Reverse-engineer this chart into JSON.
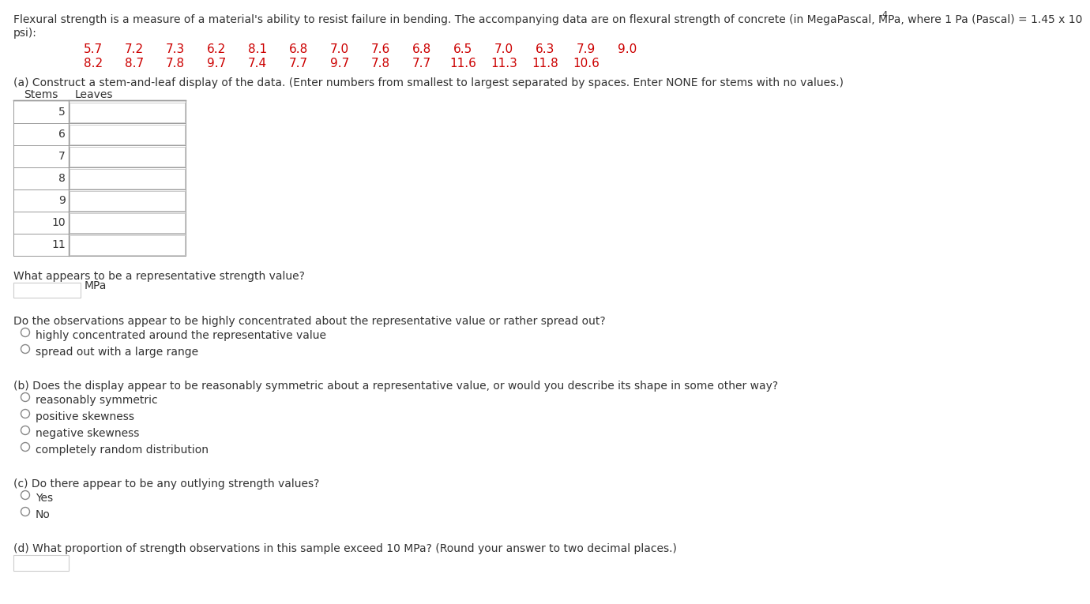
{
  "title_line1": "Flexural strength is a measure of a material's ability to resist failure in bending. The accompanying data are on flexural strength of concrete (in MegaPascal, MPa, where 1 Pa (Pascal) = 1.45 x 10⁻⁴",
  "title_line1_base": "Flexural strength is a measure of a material's ability to resist failure in bending. The accompanying data are on flexural strength of concrete (in MegaPascal, MPa, where 1 Pa (Pascal) = 1.45 x 10",
  "title_superscript": "-4",
  "title_line2": "psi):",
  "data_row1": [
    "5.7",
    "7.2",
    "7.3",
    "6.2",
    "8.1",
    "6.8",
    "7.0",
    "7.6",
    "6.8",
    "6.5",
    "7.0",
    "6.3",
    "7.9",
    "9.0"
  ],
  "data_row2": [
    "8.2",
    "8.7",
    "7.8",
    "9.7",
    "7.4",
    "7.7",
    "9.7",
    "7.8",
    "7.7",
    "11.6",
    "11.3",
    "11.8",
    "10.6"
  ],
  "data_color": "#cc0000",
  "text_color": "#333333",
  "bg_color": "#ffffff",
  "part_a_label": "(a) Construct a stem-and-leaf display of the data. (Enter numbers from smallest to largest separated by spaces. Enter NONE for stems with no values.)",
  "stems_label": "Stems",
  "leaves_label": "Leaves",
  "stems": [
    "5",
    "6",
    "7",
    "8",
    "9",
    "10",
    "11"
  ],
  "rep_value_q": "What appears to be a representative strength value?",
  "mpa_label": "MPa",
  "conc_q": "Do the observations appear to be highly concentrated about the representative value or rather spread out?",
  "conc_opt1": "highly concentrated around the representative value",
  "conc_opt2": "spread out with a large range",
  "part_b_label": "(b) Does the display appear to be reasonably symmetric about a representative value, or would you describe its shape in some other way?",
  "b_opt1": "reasonably symmetric",
  "b_opt2": "positive skewness",
  "b_opt3": "negative skewness",
  "b_opt4": "completely random distribution",
  "part_c_label": "(c) Do there appear to be any outlying strength values?",
  "c_opt1": "Yes",
  "c_opt2": "No",
  "part_d_label": "(d) What proportion of strength observations in this sample exceed 10 MPa? (Round your answer to two decimal places.)",
  "font_size_body": 10.0,
  "font_size_data": 11.0,
  "font_size_super": 8.0,
  "table_box_color": "#cccccc",
  "radio_color": "#888888",
  "line_color": "#999999"
}
